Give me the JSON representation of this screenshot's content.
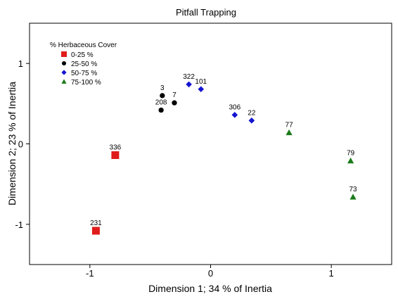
{
  "chart_data": {
    "type": "scatter",
    "title": "Pitfall Trapping",
    "xlabel": "Dimension 1; 34 % of Inertia",
    "ylabel": "Dimension 2; 23 % of Inertia",
    "xlim": [
      -1.5,
      1.5
    ],
    "ylim": [
      -1.5,
      1.5
    ],
    "xticks": [
      -1,
      0,
      1
    ],
    "yticks": [
      1,
      0,
      -1
    ],
    "grid": false,
    "legend": {
      "title": "% Herbaceous Cover",
      "placement": "top-left"
    },
    "series": [
      {
        "name": "0-25 %",
        "marker": "square",
        "color": "#e01b1b",
        "points": [
          {
            "label": "336",
            "x": -0.79,
            "y": -0.14
          },
          {
            "label": "231",
            "x": -0.95,
            "y": -1.08
          }
        ]
      },
      {
        "name": "25-50 %",
        "marker": "circle",
        "color": "#000000",
        "points": [
          {
            "label": "3",
            "x": -0.4,
            "y": 0.6
          },
          {
            "label": "208",
            "x": -0.41,
            "y": 0.42
          },
          {
            "label": "7",
            "x": -0.3,
            "y": 0.51
          }
        ]
      },
      {
        "name": "50-75 %",
        "marker": "diamond",
        "color": "#1414d2",
        "points": [
          {
            "label": "322",
            "x": -0.18,
            "y": 0.74
          },
          {
            "label": "101",
            "x": -0.08,
            "y": 0.68
          },
          {
            "label": "306",
            "x": 0.2,
            "y": 0.36
          },
          {
            "label": "22",
            "x": 0.34,
            "y": 0.29
          }
        ]
      },
      {
        "name": "75-100 %",
        "marker": "triangle",
        "color": "#1a7a1a",
        "points": [
          {
            "label": "77",
            "x": 0.65,
            "y": 0.14
          },
          {
            "label": "79",
            "x": 1.16,
            "y": -0.21
          },
          {
            "label": "73",
            "x": 1.18,
            "y": -0.66
          }
        ]
      }
    ]
  }
}
